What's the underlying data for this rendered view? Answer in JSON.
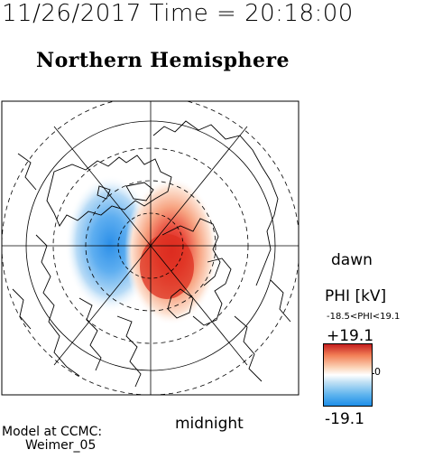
{
  "header": {
    "date": "11/26/2017",
    "time_label": "Time =",
    "time": "20:18:00"
  },
  "title": "Northern Hemisphere",
  "labels": {
    "dawn": "dawn",
    "midnight": "midnight"
  },
  "colorbar": {
    "title": "PHI [kV]",
    "range_text": "-18.5<PHI<19.1",
    "max_label": "+19.1",
    "min_label": "-19.1",
    "mid_label": "0",
    "colors": {
      "high": "#c51f1f",
      "mid": "#ffffff",
      "low": "#1e8ee8"
    }
  },
  "model": {
    "line1": "Model at CCMC:",
    "line2": "Weimer_05"
  }
}
